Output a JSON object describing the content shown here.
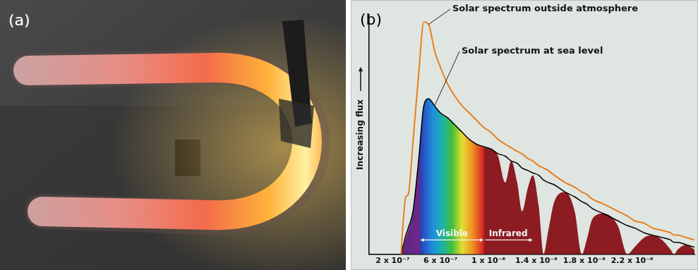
{
  "photo": {
    "panel_label": "(a)"
  },
  "chart_data": {
    "type": "line",
    "panel_label": "(b)",
    "y_label": "Increasing flux",
    "x": [
      2.7e-07,
      2.9e-07,
      3.1e-07,
      3.3e-07,
      3.7e-07,
      4.2e-07,
      4.6e-07,
      5e-07,
      5.5e-07,
      6e-07,
      6.6e-07,
      7.2e-07,
      7.8e-07,
      8.4e-07,
      9e-07,
      9.6e-07,
      1.02e-06,
      1.08e-06,
      1.14e-06,
      1.19e-06,
      1.24e-06,
      1.28e-06,
      1.33e-06,
      1.37e-06,
      1.42e-06,
      1.46e-06,
      1.5e-06,
      1.55e-06,
      1.64e-06,
      1.72e-06,
      1.78e-06,
      1.82e-06,
      1.87e-06,
      1.96e-06,
      2.08e-06,
      2.16e-06,
      2.22e-06,
      2.3e-06,
      2.37e-06,
      2.45e-06,
      2.52e-06,
      2.55e-06,
      2.58e-06,
      2.65e-06,
      2.72e-06
    ],
    "series": [
      {
        "name": "Solar spectrum outside atmosphere",
        "color": "#e8801e",
        "values": [
          0,
          15,
          24,
          25,
          47,
          77,
          97,
          96,
          85,
          78,
          71,
          66,
          62,
          59,
          56,
          53,
          51,
          48,
          46,
          44.5,
          43,
          42,
          40,
          39,
          37,
          36,
          35,
          33,
          30,
          28,
          26,
          25,
          23,
          21,
          18,
          16,
          14,
          13,
          11,
          10,
          9,
          8,
          8,
          7,
          6
        ]
      },
      {
        "name": "Solar spectrum at sea level",
        "color": "#000000",
        "values": [
          0,
          3,
          7,
          10,
          18,
          41,
          62,
          65,
          62,
          59,
          57,
          54,
          51,
          48,
          46,
          45,
          44,
          41,
          30,
          39,
          30,
          18,
          28,
          33,
          20,
          0,
          10,
          22,
          26,
          18,
          0,
          6,
          15,
          17,
          12,
          0,
          3,
          7,
          8,
          6,
          2,
          0,
          2,
          4,
          2
        ],
        "envelope": [
          0,
          4,
          8,
          11,
          18,
          41,
          62,
          65,
          62,
          59,
          57,
          54,
          51,
          48,
          46,
          45,
          44,
          42,
          41,
          39,
          38,
          36,
          35,
          34,
          33,
          31,
          30,
          29,
          26,
          24,
          22,
          21,
          19,
          17,
          14,
          12,
          11,
          9,
          8,
          7,
          6,
          5,
          5,
          4,
          3
        ]
      }
    ],
    "xlim": [
      0,
      2.72e-06
    ],
    "xticks": [
      {
        "value": 2e-07,
        "label": "2 x 10⁻⁷"
      },
      {
        "value": 6e-07,
        "label": "6 x 10⁻⁷"
      },
      {
        "value": 1e-06,
        "label": "1 x 10⁻⁶"
      },
      {
        "value": 1.4e-06,
        "label": "1.4 x 10⁻⁶"
      },
      {
        "value": 1.8e-06,
        "label": "1.8 x 10⁻⁶"
      },
      {
        "value": 2.2e-06,
        "label": "2.2 x 10⁻⁶"
      }
    ],
    "ylim": [
      0,
      100
    ],
    "yticks": [],
    "tick_labels": "x",
    "grid": false,
    "annotations": [
      {
        "text": "Solar spectrum outside atmosphere",
        "x": 5e-07,
        "y": 96
      },
      {
        "text": "Solar spectrum at sea level",
        "x": 5.5e-07,
        "y": 62
      },
      {
        "text": "Visible",
        "x": [
          4.3e-07,
          9.6e-07
        ],
        "y": 6,
        "marker": "double_arrow"
      },
      {
        "text": "Infrared",
        "x": [
          9.6e-07,
          1.37e-06
        ],
        "y": 6,
        "marker": "arrow"
      }
    ]
  }
}
